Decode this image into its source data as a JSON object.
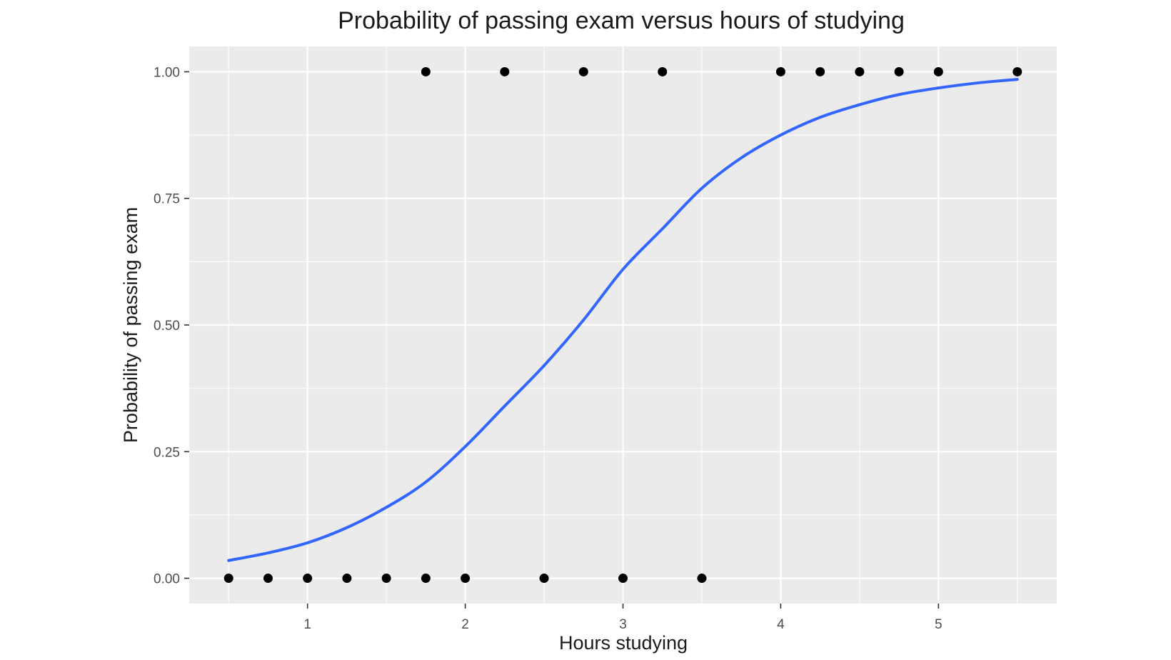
{
  "chart_data": {
    "type": "scatter",
    "title": "Probability of passing exam versus hours of studying",
    "xlabel": "Hours studying",
    "ylabel": "Probability of passing exam",
    "xlim": [
      0.25,
      5.75
    ],
    "ylim": [
      -0.05,
      1.05
    ],
    "x_ticks": [
      1,
      2,
      3,
      4,
      5
    ],
    "x_tick_labels": [
      "1",
      "2",
      "3",
      "4",
      "5"
    ],
    "y_ticks": [
      0,
      0.25,
      0.5,
      0.75,
      1
    ],
    "y_tick_labels": [
      "0.00",
      "0.25",
      "0.50",
      "0.75",
      "1.00"
    ],
    "grid": true,
    "colors": {
      "panel_background": "#ebebeb",
      "grid": "#ffffff",
      "points": "#000000",
      "fit_line": "#3366ff"
    },
    "series": [
      {
        "type": "scatter",
        "points": [
          {
            "x": 0.5,
            "y": 0
          },
          {
            "x": 0.75,
            "y": 0
          },
          {
            "x": 1.0,
            "y": 0
          },
          {
            "x": 1.25,
            "y": 0
          },
          {
            "x": 1.5,
            "y": 0
          },
          {
            "x": 1.75,
            "y": 0
          },
          {
            "x": 1.75,
            "y": 1
          },
          {
            "x": 2.0,
            "y": 0
          },
          {
            "x": 2.25,
            "y": 1
          },
          {
            "x": 2.5,
            "y": 0
          },
          {
            "x": 2.75,
            "y": 1
          },
          {
            "x": 3.0,
            "y": 0
          },
          {
            "x": 3.25,
            "y": 1
          },
          {
            "x": 3.5,
            "y": 0
          },
          {
            "x": 4.0,
            "y": 1
          },
          {
            "x": 4.25,
            "y": 1
          },
          {
            "x": 4.5,
            "y": 1
          },
          {
            "x": 4.75,
            "y": 1
          },
          {
            "x": 5.0,
            "y": 1
          },
          {
            "x": 5.5,
            "y": 1
          }
        ]
      },
      {
        "type": "line",
        "points": [
          {
            "x": 0.5,
            "y": 0.035
          },
          {
            "x": 0.75,
            "y": 0.05
          },
          {
            "x": 1.0,
            "y": 0.07
          },
          {
            "x": 1.25,
            "y": 0.1
          },
          {
            "x": 1.5,
            "y": 0.14
          },
          {
            "x": 1.75,
            "y": 0.19
          },
          {
            "x": 2.0,
            "y": 0.26
          },
          {
            "x": 2.25,
            "y": 0.34
          },
          {
            "x": 2.5,
            "y": 0.42
          },
          {
            "x": 2.75,
            "y": 0.51
          },
          {
            "x": 3.0,
            "y": 0.61
          },
          {
            "x": 3.25,
            "y": 0.69
          },
          {
            "x": 3.5,
            "y": 0.77
          },
          {
            "x": 3.75,
            "y": 0.83
          },
          {
            "x": 4.0,
            "y": 0.875
          },
          {
            "x": 4.25,
            "y": 0.91
          },
          {
            "x": 4.5,
            "y": 0.935
          },
          {
            "x": 4.75,
            "y": 0.955
          },
          {
            "x": 5.0,
            "y": 0.968
          },
          {
            "x": 5.25,
            "y": 0.978
          },
          {
            "x": 5.5,
            "y": 0.985
          }
        ]
      }
    ]
  }
}
